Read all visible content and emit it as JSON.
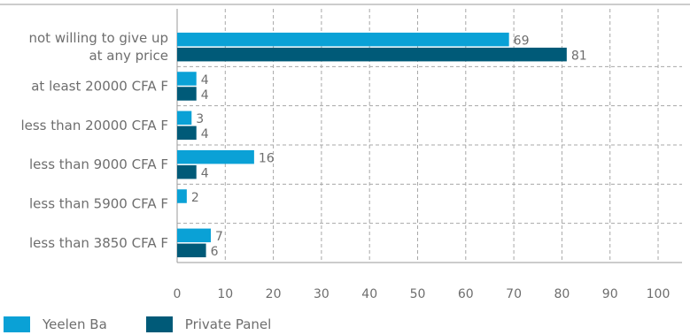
{
  "chart_data": {
    "type": "bar",
    "orientation": "horizontal",
    "categories": [
      [
        "not willing to give up",
        "at any price"
      ],
      [
        "at least 20000 CFA F"
      ],
      [
        "less than 20000 CFA F"
      ],
      [
        "less than 9000 CFA F"
      ],
      [
        "less than 5900 CFA F"
      ],
      [
        "less than 3850 CFA F"
      ]
    ],
    "series": [
      {
        "name": "Yeelen Ba",
        "color": "#0aa1d6",
        "values": [
          69,
          4,
          3,
          16,
          2,
          7
        ]
      },
      {
        "name": "Private Panel",
        "color": "#005a78",
        "values": [
          81,
          4,
          4,
          4,
          null,
          6
        ]
      }
    ],
    "xlim": [
      0,
      100
    ],
    "xticks": [
      0,
      10,
      20,
      30,
      40,
      50,
      60,
      70,
      80,
      90,
      100
    ],
    "grid": "dashed vertical and horizontal",
    "legend_position": "bottom-left",
    "title": "",
    "xlabel": "",
    "ylabel": ""
  }
}
